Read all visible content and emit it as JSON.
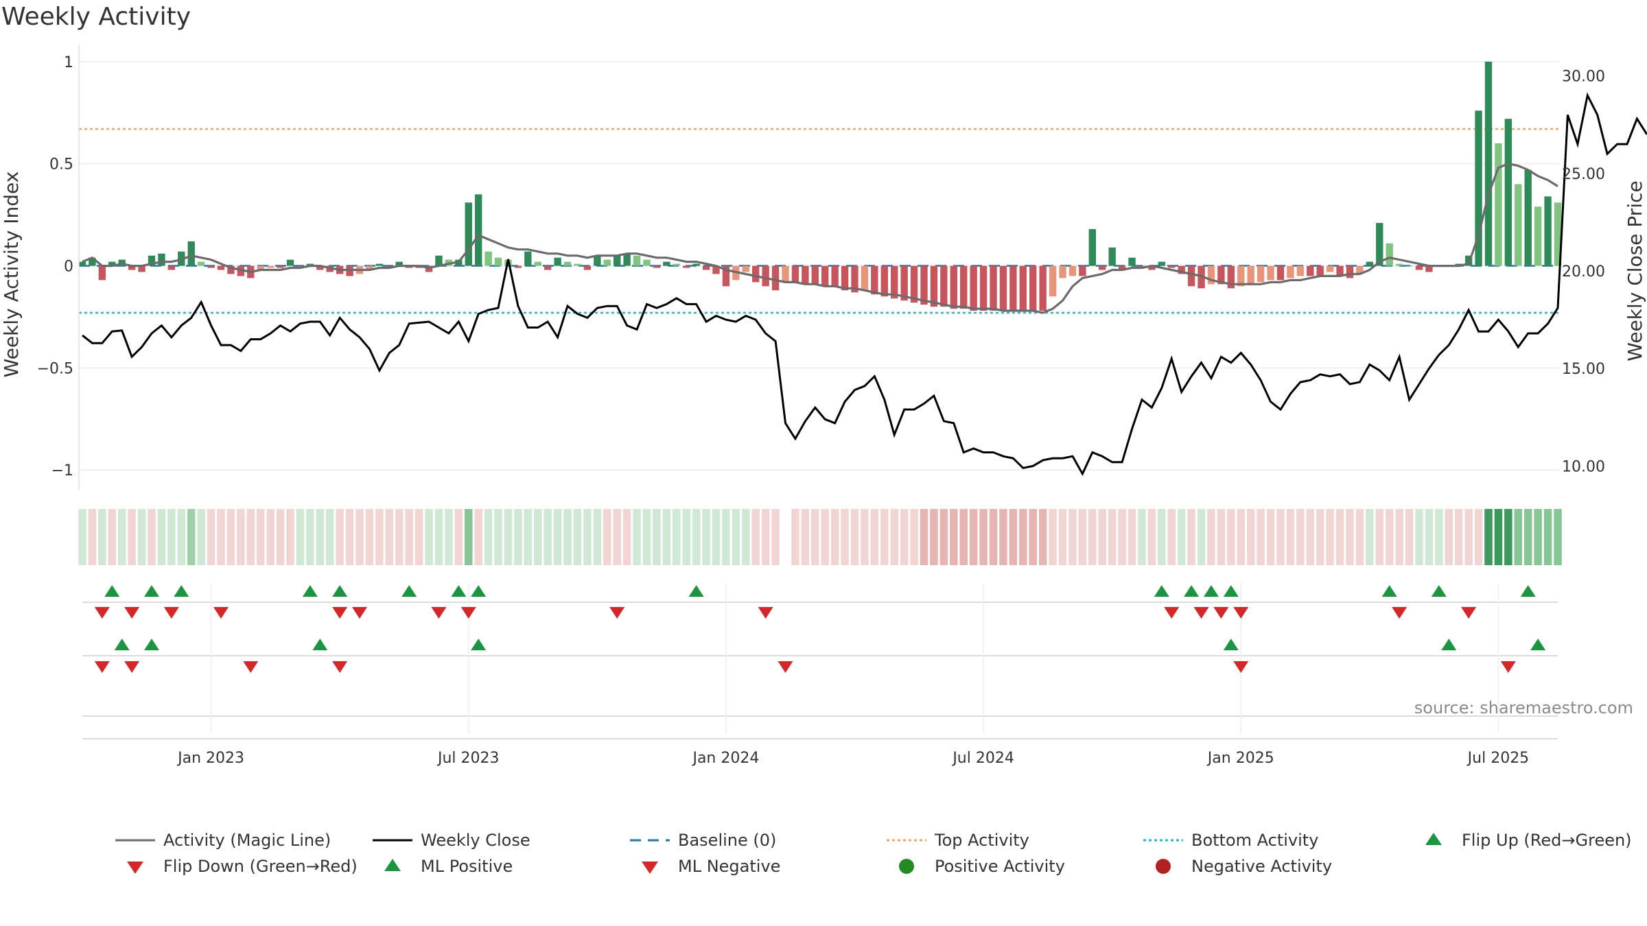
{
  "title": "Weekly Activity",
  "source": "source: sharemaestro.com",
  "colors": {
    "green_dark": "#2e8b57",
    "green_light": "#7fc47f",
    "red_dark": "#c9555c",
    "red_light": "#e8957a",
    "magic_line": "#6b6b6b",
    "close": "#000000",
    "baseline": "#1f77b4",
    "top": "#f4a261",
    "bottom": "#17becf",
    "flip_up": "#1a9641",
    "flip_down": "#d62728",
    "pos_dot": "#228b22",
    "neg_dot": "#b22222"
  },
  "chart_data": {
    "type": "bar",
    "title": "Weekly Activity",
    "ylabel_left": "Weekly Activity Index",
    "ylabel_right": "Weekly Close Price",
    "ylim_left": [
      -1.1,
      1.05
    ],
    "ylim_right": [
      8.75,
      31.25
    ],
    "yticks_left": [
      1,
      0.5,
      0,
      -0.5,
      -1
    ],
    "yticks_left_labels": [
      "1",
      "0.5",
      "0",
      "−0.5",
      "−1"
    ],
    "yticks_right": [
      30,
      25,
      20,
      15,
      10
    ],
    "yticks_right_labels": [
      "30.00",
      "25.00",
      "20.00",
      "15.00",
      "10.00"
    ],
    "x_start": "2022-10-03",
    "x_end": "2025-09-15",
    "xticks": [
      {
        "label": "Jan 2023",
        "week": 13
      },
      {
        "label": "Jul 2023",
        "week": 39
      },
      {
        "label": "Jan 2024",
        "week": 65
      },
      {
        "label": "Jul 2024",
        "week": 91
      },
      {
        "label": "Jan 2025",
        "week": 117
      },
      {
        "label": "Jul 2025",
        "week": 143
      }
    ],
    "top_activity": 0.67,
    "bottom_activity": -0.23,
    "baseline": 0,
    "activity": [
      0.02,
      0.04,
      -0.07,
      0.02,
      0.03,
      -0.02,
      -0.03,
      0.05,
      0.06,
      -0.02,
      0.07,
      0.12,
      0.02,
      -0.01,
      -0.02,
      -0.04,
      -0.05,
      -0.06,
      -0.02,
      -0.01,
      -0.01,
      0.03,
      -0.01,
      0.01,
      -0.02,
      -0.03,
      -0.04,
      -0.05,
      -0.04,
      -0.02,
      0.01,
      -0.01,
      0.02,
      -0.01,
      -0.01,
      -0.03,
      0.05,
      0.03,
      0.03,
      0.31,
      0.35,
      0.07,
      0.04,
      0.03,
      -0.01,
      0.07,
      0.02,
      -0.02,
      0.04,
      0.02,
      0.01,
      -0.02,
      0.05,
      0.03,
      0.05,
      0.06,
      0.05,
      0.03,
      -0.01,
      0.02,
      0.01,
      -0.01,
      0.01,
      -0.02,
      -0.04,
      -0.1,
      -0.07,
      -0.03,
      -0.08,
      -0.1,
      -0.12,
      -0.08,
      -0.08,
      -0.09,
      -0.09,
      -0.1,
      -0.1,
      -0.12,
      -0.13,
      -0.12,
      -0.14,
      -0.15,
      -0.16,
      -0.17,
      -0.18,
      -0.19,
      -0.2,
      -0.2,
      -0.21,
      -0.21,
      -0.22,
      -0.22,
      -0.22,
      -0.22,
      -0.22,
      -0.22,
      -0.22,
      -0.22,
      -0.15,
      -0.06,
      -0.05,
      -0.05,
      0.18,
      -0.02,
      0.09,
      -0.02,
      0.04,
      -0.01,
      -0.02,
      0.02,
      -0.01,
      -0.04,
      -0.1,
      -0.11,
      -0.09,
      -0.09,
      -0.11,
      -0.1,
      -0.09,
      -0.08,
      -0.07,
      -0.07,
      -0.06,
      -0.05,
      -0.05,
      -0.05,
      -0.03,
      -0.05,
      -0.06,
      -0.04,
      0.02,
      0.21,
      0.11,
      0.01,
      0.0,
      -0.02,
      -0.03,
      0.0,
      0.0,
      0.01,
      0.05,
      0.76,
      1.0,
      0.6,
      0.72,
      0.4,
      0.47,
      0.29,
      0.34,
      0.31
    ],
    "magic_line": [
      0.02,
      0.04,
      0.0,
      0.0,
      0.01,
      0.0,
      0.0,
      0.01,
      0.02,
      0.02,
      0.03,
      0.05,
      0.04,
      0.03,
      0.01,
      -0.01,
      -0.02,
      -0.03,
      -0.02,
      -0.02,
      -0.02,
      -0.01,
      -0.01,
      0.0,
      0.0,
      -0.01,
      -0.02,
      -0.02,
      -0.02,
      -0.02,
      -0.01,
      -0.01,
      0.0,
      0.0,
      0.0,
      -0.01,
      0.0,
      0.01,
      0.02,
      0.08,
      0.15,
      0.13,
      0.11,
      0.09,
      0.08,
      0.08,
      0.07,
      0.06,
      0.06,
      0.05,
      0.05,
      0.04,
      0.05,
      0.05,
      0.05,
      0.06,
      0.06,
      0.05,
      0.04,
      0.04,
      0.03,
      0.02,
      0.02,
      0.01,
      0.0,
      -0.02,
      -0.03,
      -0.04,
      -0.05,
      -0.06,
      -0.07,
      -0.08,
      -0.08,
      -0.09,
      -0.09,
      -0.1,
      -0.1,
      -0.11,
      -0.11,
      -0.12,
      -0.13,
      -0.14,
      -0.14,
      -0.15,
      -0.16,
      -0.17,
      -0.18,
      -0.19,
      -0.2,
      -0.2,
      -0.21,
      -0.21,
      -0.21,
      -0.22,
      -0.22,
      -0.22,
      -0.22,
      -0.23,
      -0.21,
      -0.17,
      -0.1,
      -0.06,
      -0.05,
      -0.04,
      -0.02,
      -0.02,
      -0.01,
      -0.01,
      0.0,
      -0.01,
      -0.02,
      -0.03,
      -0.04,
      -0.05,
      -0.07,
      -0.08,
      -0.09,
      -0.09,
      -0.09,
      -0.09,
      -0.08,
      -0.08,
      -0.07,
      -0.07,
      -0.06,
      -0.05,
      -0.05,
      -0.05,
      -0.04,
      -0.04,
      -0.02,
      0.02,
      0.04,
      0.03,
      0.02,
      0.01,
      0.0,
      0.0,
      0.0,
      0.0,
      0.01,
      0.15,
      0.35,
      0.48,
      0.5,
      0.49,
      0.47,
      0.44,
      0.42,
      0.39
    ],
    "weekly_close": [
      16.7,
      16.3,
      16.3,
      16.9,
      16.95,
      15.6,
      16.1,
      16.8,
      17.2,
      16.6,
      17.2,
      17.6,
      18.4,
      17.2,
      16.2,
      16.2,
      15.9,
      16.5,
      16.5,
      16.8,
      17.2,
      16.9,
      17.3,
      17.4,
      17.4,
      16.7,
      17.6,
      17.0,
      16.6,
      16.0,
      14.9,
      15.8,
      16.2,
      17.3,
      17.35,
      17.4,
      17.1,
      16.8,
      17.4,
      16.4,
      17.8,
      18.0,
      18.1,
      20.6,
      18.2,
      17.1,
      17.1,
      17.4,
      16.6,
      18.2,
      17.8,
      17.6,
      18.1,
      18.2,
      18.2,
      17.2,
      17.0,
      18.3,
      18.1,
      18.3,
      18.6,
      18.3,
      18.3,
      17.4,
      17.7,
      17.5,
      17.4,
      17.7,
      17.5,
      16.8,
      16.4,
      12.2,
      11.4,
      12.3,
      13.0,
      12.4,
      12.2,
      13.3,
      13.9,
      14.1,
      14.6,
      13.4,
      11.6,
      12.9,
      12.9,
      13.2,
      13.6,
      12.3,
      12.2,
      10.7,
      10.9,
      10.7,
      10.7,
      10.5,
      10.4,
      9.9,
      10.0,
      10.3,
      10.4,
      10.4,
      10.5,
      9.6,
      10.7,
      10.5,
      10.2,
      10.2,
      11.9,
      13.4,
      13.0,
      14.0,
      15.5,
      13.8,
      14.6,
      15.3,
      14.5,
      15.6,
      15.3,
      15.8,
      15.2,
      14.4,
      13.3,
      12.9,
      13.7,
      14.3,
      14.4,
      14.7,
      14.6,
      14.7,
      14.2,
      14.3,
      15.2,
      14.9,
      14.4,
      15.6,
      13.4,
      14.2,
      15.0,
      15.7,
      16.2,
      17.0,
      18.0,
      16.9,
      16.9,
      17.5,
      16.9,
      16.1,
      16.8,
      16.8,
      17.3,
      18.1,
      28.0,
      26.5,
      29.0,
      28.0,
      26.0,
      26.5,
      26.5,
      27.8,
      27.0
    ]
  },
  "activity_strip": "GRGRGRGRGGGGGRRRRRRRRRGGGGRRRRRRRRRGGGRGRGGGGGGGGGGGGRRRGGGGGGGGGGGGRRR_RRRRRRRRRRRRRRRRRRRRRRRRRRRRRRRRRRRGRGRGRGRRRRRRRRRRRRRRRRGRRRRGGGRRRRGGGGGGGGGG",
  "signal_rows": {
    "flip_up": [
      3,
      7,
      10,
      23,
      26,
      33,
      38,
      40,
      62,
      109,
      112,
      114,
      116,
      132,
      137,
      146
    ],
    "flip_down": [
      2,
      5,
      9,
      14,
      26,
      28,
      36,
      39,
      54,
      69,
      110,
      113,
      115,
      117,
      133,
      140
    ],
    "ml_positive": [
      4,
      7,
      24,
      40,
      116,
      138,
      147
    ],
    "ml_negative": [
      2,
      5,
      17,
      26,
      71,
      117,
      144
    ]
  },
  "legend": [
    {
      "label": "Activity (Magic Line)",
      "kind": "line-grey"
    },
    {
      "label": "Weekly Close",
      "kind": "line-black"
    },
    {
      "label": "Baseline (0)",
      "kind": "line-dashed"
    },
    {
      "label": "Top Activity",
      "kind": "line-dotted-orange"
    },
    {
      "label": "Bottom Activity",
      "kind": "line-dotted-cyan"
    },
    {
      "label": "Flip Up (Red→Green)",
      "kind": "tri-up-green"
    },
    {
      "label": "Flip Down (Green→Red)",
      "kind": "tri-down-red"
    },
    {
      "label": "ML Positive",
      "kind": "tri-up-green"
    },
    {
      "label": "ML Negative",
      "kind": "tri-down-red"
    },
    {
      "label": "Positive Activity",
      "kind": "dot-green"
    },
    {
      "label": "Negative Activity",
      "kind": "dot-red"
    }
  ]
}
